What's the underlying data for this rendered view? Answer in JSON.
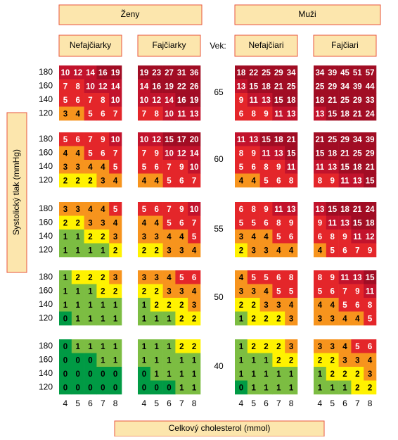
{
  "chart_data": {
    "type": "heatmap",
    "sex_labels": [
      "Ženy",
      "Muži"
    ],
    "age_header": "Vek:",
    "group_labels": [
      "Nefajčiarky",
      "Fajčiarky",
      "Nefajčiari",
      "Fajčiari"
    ],
    "y_axis_label": "Systolický tlak (mmHg)",
    "x_axis_label": "Celkový cholesterol (mmol)",
    "ages": [
      65,
      60,
      55,
      50,
      40
    ],
    "pressures": [
      180,
      160,
      140,
      120
    ],
    "cholesterol": [
      4,
      5,
      6,
      7,
      8
    ],
    "colors": [
      {
        "from": 0,
        "color": "#009a44",
        "text": "#000000"
      },
      {
        "from": 1,
        "color": "#7cbd42",
        "text": "#000000"
      },
      {
        "from": 2,
        "color": "#fff200",
        "text": "#000000"
      },
      {
        "from": 3,
        "color": "#f7941d",
        "text": "#000000"
      },
      {
        "from": 5,
        "color": "#e4262a",
        "text": "#ffffff"
      },
      {
        "from": 10,
        "color": "#c2132c",
        "text": "#ffffff"
      },
      {
        "from": 15,
        "color": "#a10d24",
        "text": "#ffffff"
      }
    ],
    "values": [
      [
        [
          [
            10,
            12,
            14,
            16,
            19
          ],
          [
            7,
            8,
            10,
            12,
            14
          ],
          [
            5,
            6,
            7,
            8,
            10
          ],
          [
            3,
            4,
            5,
            6,
            7
          ]
        ],
        [
          [
            19,
            23,
            27,
            31,
            36
          ],
          [
            14,
            16,
            19,
            22,
            26
          ],
          [
            10,
            12,
            14,
            16,
            19
          ],
          [
            7,
            8,
            10,
            11,
            13
          ]
        ],
        [
          [
            18,
            22,
            25,
            29,
            34
          ],
          [
            13,
            15,
            18,
            21,
            25
          ],
          [
            9,
            11,
            13,
            15,
            18
          ],
          [
            6,
            8,
            9,
            11,
            13
          ]
        ],
        [
          [
            34,
            39,
            45,
            51,
            57
          ],
          [
            25,
            29,
            34,
            39,
            44
          ],
          [
            18,
            21,
            25,
            29,
            33
          ],
          [
            13,
            15,
            18,
            21,
            24
          ]
        ]
      ],
      [
        [
          [
            5,
            6,
            7,
            9,
            10
          ],
          [
            4,
            4,
            5,
            6,
            7
          ],
          [
            3,
            3,
            4,
            4,
            5
          ],
          [
            2,
            2,
            2,
            3,
            4
          ]
        ],
        [
          [
            10,
            12,
            15,
            17,
            20
          ],
          [
            7,
            9,
            10,
            12,
            14
          ],
          [
            5,
            6,
            7,
            9,
            10
          ],
          [
            4,
            4,
            5,
            6,
            7
          ]
        ],
        [
          [
            11,
            13,
            15,
            18,
            21
          ],
          [
            8,
            9,
            11,
            13,
            15
          ],
          [
            5,
            6,
            8,
            9,
            11
          ],
          [
            4,
            4,
            5,
            6,
            8
          ]
        ],
        [
          [
            21,
            25,
            29,
            34,
            39
          ],
          [
            15,
            18,
            21,
            25,
            29
          ],
          [
            11,
            13,
            15,
            18,
            21
          ],
          [
            8,
            9,
            11,
            13,
            15
          ]
        ]
      ],
      [
        [
          [
            3,
            3,
            4,
            4,
            5
          ],
          [
            2,
            2,
            3,
            3,
            4
          ],
          [
            1,
            1,
            2,
            2,
            3
          ],
          [
            1,
            1,
            1,
            1,
            2
          ]
        ],
        [
          [
            5,
            6,
            7,
            9,
            10
          ],
          [
            4,
            4,
            5,
            6,
            7
          ],
          [
            3,
            3,
            4,
            4,
            5
          ],
          [
            2,
            2,
            3,
            3,
            4
          ]
        ],
        [
          [
            6,
            8,
            9,
            11,
            13
          ],
          [
            5,
            5,
            6,
            8,
            9
          ],
          [
            3,
            4,
            4,
            5,
            6
          ],
          [
            2,
            3,
            3,
            4,
            4
          ]
        ],
        [
          [
            13,
            15,
            18,
            21,
            24
          ],
          [
            9,
            11,
            13,
            15,
            18
          ],
          [
            6,
            8,
            9,
            11,
            12
          ],
          [
            4,
            5,
            6,
            7,
            9
          ]
        ]
      ],
      [
        [
          [
            1,
            2,
            2,
            2,
            3
          ],
          [
            1,
            1,
            1,
            2,
            2
          ],
          [
            1,
            1,
            1,
            1,
            1
          ],
          [
            0,
            1,
            1,
            1,
            1
          ]
        ],
        [
          [
            3,
            3,
            4,
            5,
            6
          ],
          [
            2,
            2,
            3,
            3,
            4
          ],
          [
            1,
            2,
            2,
            2,
            3
          ],
          [
            1,
            1,
            1,
            2,
            2
          ]
        ],
        [
          [
            4,
            5,
            5,
            6,
            8
          ],
          [
            3,
            3,
            4,
            5,
            5
          ],
          [
            2,
            2,
            3,
            3,
            4
          ],
          [
            1,
            2,
            2,
            2,
            3
          ]
        ],
        [
          [
            8,
            9,
            11,
            13,
            15
          ],
          [
            5,
            6,
            7,
            9,
            11
          ],
          [
            4,
            4,
            5,
            6,
            8
          ],
          [
            3,
            3,
            4,
            4,
            5
          ]
        ]
      ],
      [
        [
          [
            0,
            1,
            1,
            1,
            1
          ],
          [
            0,
            0,
            0,
            1,
            1
          ],
          [
            0,
            0,
            0,
            0,
            0
          ],
          [
            0,
            0,
            0,
            0,
            0
          ]
        ],
        [
          [
            1,
            1,
            1,
            2,
            2
          ],
          [
            1,
            1,
            1,
            1,
            1
          ],
          [
            0,
            1,
            1,
            1,
            1
          ],
          [
            0,
            0,
            0,
            1,
            1
          ]
        ],
        [
          [
            1,
            2,
            2,
            2,
            3
          ],
          [
            1,
            1,
            1,
            2,
            2
          ],
          [
            1,
            1,
            1,
            1,
            1
          ],
          [
            0,
            1,
            1,
            1,
            1
          ]
        ],
        [
          [
            3,
            3,
            4,
            5,
            6
          ],
          [
            2,
            2,
            3,
            3,
            4
          ],
          [
            1,
            2,
            2,
            2,
            3
          ],
          [
            1,
            1,
            1,
            2,
            2
          ]
        ]
      ]
    ]
  }
}
